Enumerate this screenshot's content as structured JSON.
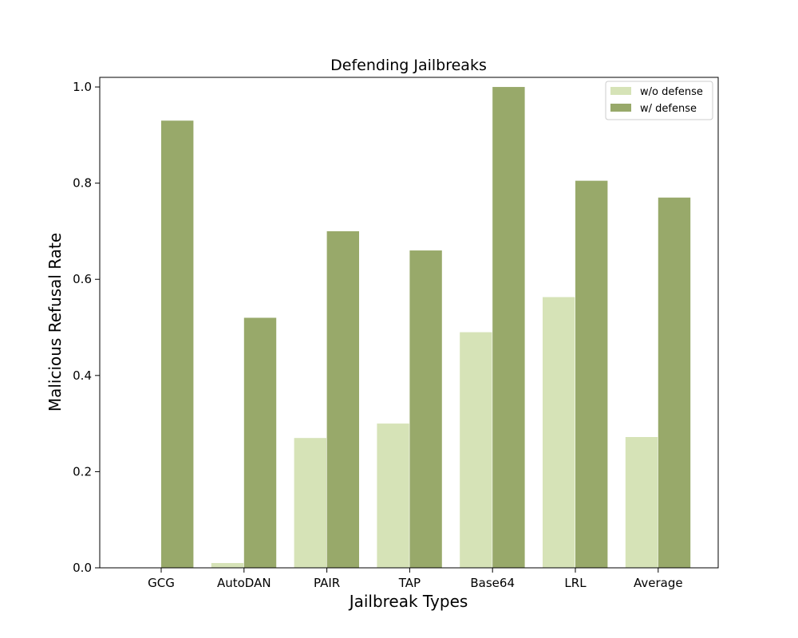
{
  "chart_data": {
    "type": "bar",
    "title": "Defending Jailbreaks",
    "xlabel": "Jailbreak Types",
    "ylabel": "Malicious Refusal Rate",
    "categories": [
      "GCG",
      "AutoDAN",
      "PAIR",
      "TAP",
      "Base64",
      "LRL",
      "Average"
    ],
    "ylim": [
      0,
      1.02
    ],
    "yticks": [
      "0.0",
      "0.2",
      "0.4",
      "0.6",
      "0.8",
      "1.0"
    ],
    "grid": false,
    "legend_position": "top-right",
    "series": [
      {
        "name": "w/o defense",
        "color": "#d6e3b7",
        "values": [
          0.0,
          0.01,
          0.27,
          0.3,
          0.49,
          0.563,
          0.272
        ]
      },
      {
        "name": "w/ defense",
        "color": "#98a96a",
        "values": [
          0.93,
          0.52,
          0.7,
          0.66,
          1.0,
          0.805,
          0.77
        ]
      }
    ]
  }
}
